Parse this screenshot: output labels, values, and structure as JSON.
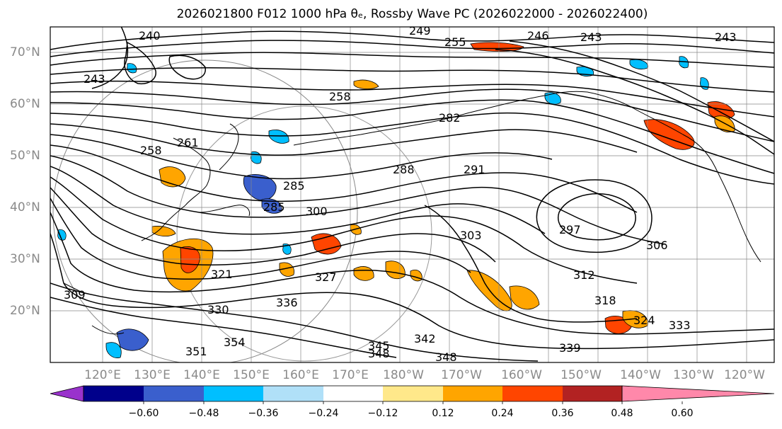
{
  "title": "2026021800 F012 1000 hPa θₑ, Rossby Wave PC (2026022000 - 2026022400)",
  "lat_labels": [
    "70°N",
    "60°N",
    "50°N",
    "40°N",
    "30°N",
    "20°N"
  ],
  "lon_labels": [
    "120°E",
    "130°E",
    "140°E",
    "150°E",
    "160°E",
    "170°E",
    "180°W",
    "170°W",
    "160°W",
    "150°W",
    "140°W",
    "130°W",
    "120°W"
  ],
  "contour_labels": [
    "240",
    "243",
    "249",
    "255",
    "246",
    "243",
    "243",
    "258",
    "261",
    "258",
    "285",
    "282",
    "288",
    "291",
    "285",
    "300",
    "303",
    "297",
    "306",
    "312",
    "318",
    "324",
    "333",
    "321",
    "327",
    "330",
    "336",
    "342",
    "345",
    "348",
    "348",
    "339",
    "351",
    "354",
    "309"
  ],
  "colorbar": {
    "ticks": [
      "−0.60",
      "−0.48",
      "−0.36",
      "−0.24",
      "−0.12",
      "0.12",
      "0.24",
      "0.36",
      "0.48",
      "0.60"
    ],
    "colors": [
      "#9932cc",
      "#00008b",
      "#3a5fcd",
      "#00bfff",
      "#b0e0f8",
      "#ffffff",
      "#ffe88a",
      "#ffa500",
      "#ff4500",
      "#b22222",
      "#ff88aa"
    ]
  }
}
